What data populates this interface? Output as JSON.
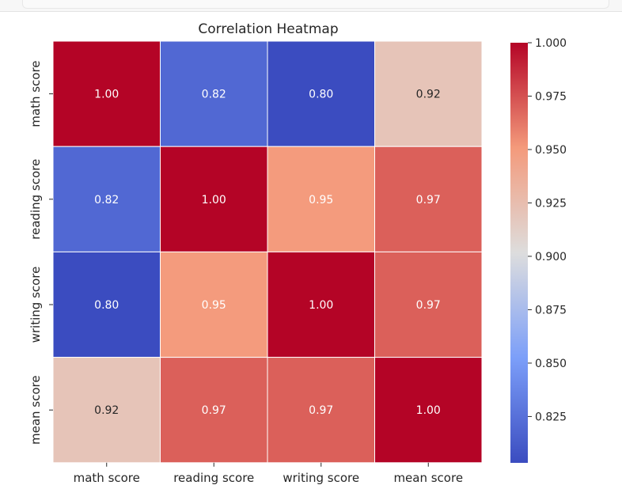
{
  "chart_data": {
    "type": "heatmap",
    "title": "Correlation Heatmap",
    "rows": [
      "math score",
      "reading score",
      "writing score",
      "mean score"
    ],
    "columns": [
      "math score",
      "reading score",
      "writing score",
      "mean score"
    ],
    "values": [
      [
        1.0,
        0.82,
        0.8,
        0.92
      ],
      [
        0.82,
        1.0,
        0.95,
        0.97
      ],
      [
        0.8,
        0.95,
        1.0,
        0.97
      ],
      [
        0.92,
        0.97,
        0.97,
        1.0
      ]
    ],
    "annotations": [
      [
        "1.00",
        "0.82",
        "0.80",
        "0.92"
      ],
      [
        "0.82",
        "1.00",
        "0.95",
        "0.97"
      ],
      [
        "0.80",
        "0.95",
        "1.00",
        "0.97"
      ],
      [
        "0.92",
        "0.97",
        "0.97",
        "1.00"
      ]
    ],
    "colormap": "coolwarm",
    "colorbar": {
      "vmin": 0.8033,
      "vmax": 1.0,
      "ticks": [
        1.0,
        0.975,
        0.95,
        0.925,
        0.9,
        0.875,
        0.85,
        0.825
      ],
      "tick_labels": [
        "1.000",
        "0.975",
        "0.950",
        "0.925",
        "0.900",
        "0.875",
        "0.850",
        "0.825"
      ]
    },
    "cell_border_color": "#ffffff"
  }
}
